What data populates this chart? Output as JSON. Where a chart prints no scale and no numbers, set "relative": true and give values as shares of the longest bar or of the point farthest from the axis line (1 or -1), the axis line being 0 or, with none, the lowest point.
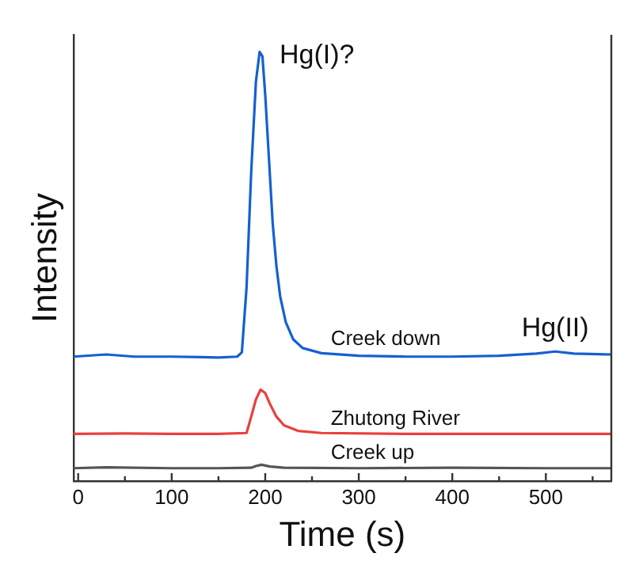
{
  "chart_data": {
    "type": "line",
    "xlabel": "Time (s)",
    "ylabel": "Intensity",
    "relative": true,
    "xlim": [
      -5,
      570
    ],
    "xticks": [
      0,
      {
        "value": 50,
        "label": null
      },
      100,
      {
        "value": 150,
        "label": null
      },
      200,
      {
        "value": 250,
        "label": null
      },
      300,
      {
        "value": 350,
        "label": null
      },
      400,
      {
        "value": 450,
        "label": null
      },
      500,
      {
        "value": 550,
        "label": null
      }
    ],
    "grid": false,
    "legend": false,
    "marker": "none",
    "line_style": "solid",
    "annotations": [
      {
        "text": "Hg(I)?",
        "x": 195,
        "y": 1
      },
      {
        "text": "Hg(II)",
        "x": 510,
        "y": 0.302
      }
    ],
    "series": [
      {
        "name": "Creek down",
        "color": "#1560d0",
        "x": [
          -5,
          30,
          60,
          100,
          150,
          170,
          175,
          180,
          185,
          190,
          194,
          197,
          200,
          204,
          208,
          212,
          216,
          222,
          230,
          240,
          260,
          300,
          350,
          400,
          450,
          490,
          510,
          530,
          570
        ],
        "values": [
          0.29,
          0.295,
          0.29,
          0.29,
          0.288,
          0.29,
          0.3,
          0.45,
          0.72,
          0.93,
          1,
          0.99,
          0.9,
          0.75,
          0.6,
          0.5,
          0.43,
          0.37,
          0.33,
          0.31,
          0.298,
          0.292,
          0.29,
          0.29,
          0.292,
          0.297,
          0.302,
          0.297,
          0.295
        ]
      },
      {
        "name": "Zhutong River",
        "color": "#e8403c",
        "x": [
          -5,
          50,
          100,
          150,
          180,
          185,
          190,
          195,
          200,
          205,
          212,
          220,
          235,
          260,
          350,
          450,
          570
        ],
        "values": [
          0.11,
          0.111,
          0.11,
          0.11,
          0.112,
          0.15,
          0.19,
          0.213,
          0.205,
          0.18,
          0.15,
          0.13,
          0.117,
          0.112,
          0.11,
          0.11,
          0.11
        ]
      },
      {
        "name": "Creek up",
        "color": "#555555",
        "x": [
          -5,
          30,
          100,
          150,
          185,
          190,
          196,
          205,
          220,
          300,
          400,
          500,
          570
        ],
        "values": [
          0.03,
          0.032,
          0.03,
          0.03,
          0.031,
          0.035,
          0.038,
          0.034,
          0.031,
          0.03,
          0.031,
          0.03,
          0.03
        ]
      }
    ]
  }
}
